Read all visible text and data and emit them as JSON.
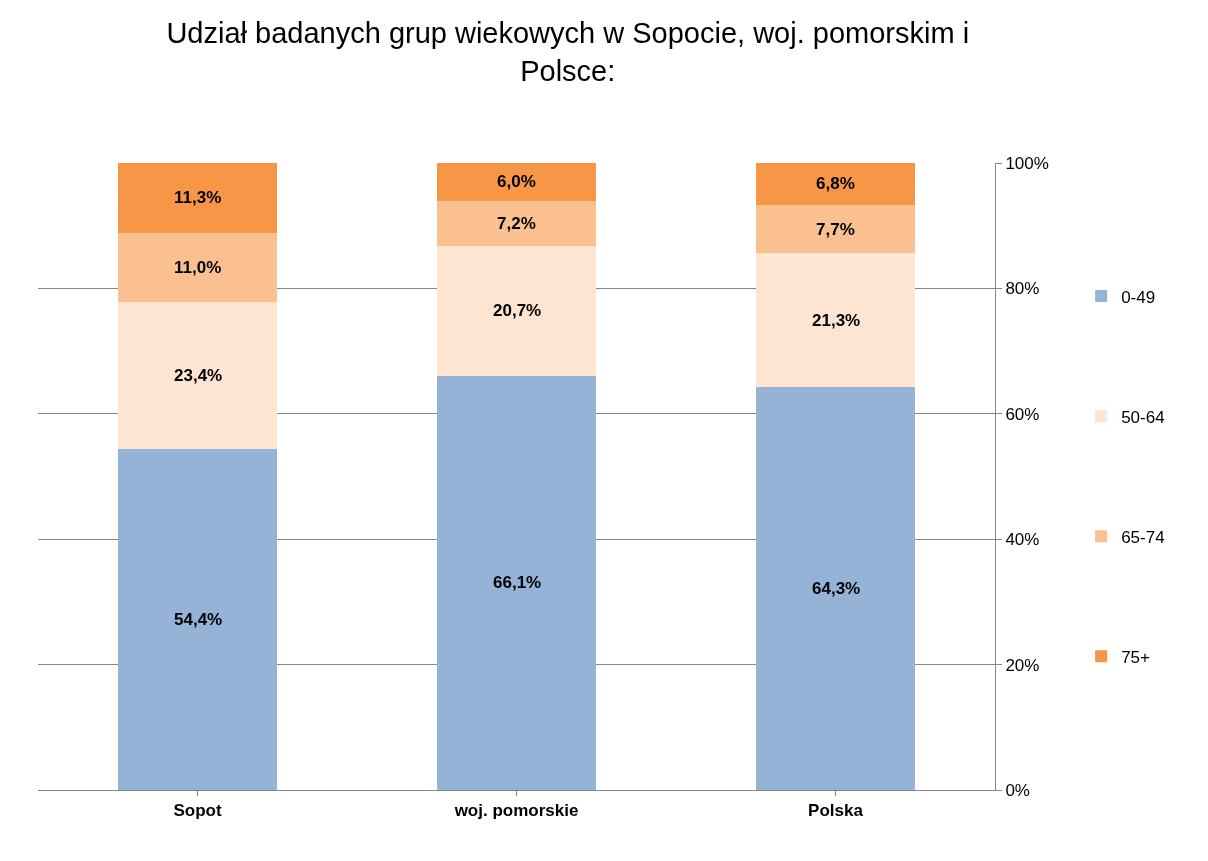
{
  "chart_data": {
    "type": "bar",
    "stacked": true,
    "title": "Udział badanych grup wiekowych w Sopocie, woj. pomorskim i\nPolsce:",
    "categories": [
      "Sopot",
      "woj. pomorskie",
      "Polska"
    ],
    "series": [
      {
        "name": "0-49",
        "color": "#95b3d7",
        "values": [
          54.4,
          66.1,
          64.3
        ],
        "value_labels": [
          "54,4%",
          "66,1%",
          "64,3%"
        ]
      },
      {
        "name": "50-64",
        "color": "#fde5d2",
        "values": [
          23.4,
          20.7,
          21.3
        ],
        "value_labels": [
          "23,4%",
          "20,7%",
          "21,3%"
        ]
      },
      {
        "name": "65-74",
        "color": "#fac090",
        "values": [
          11.0,
          7.2,
          7.7
        ],
        "value_labels": [
          "11,0%",
          "7,2%",
          "7,7%"
        ]
      },
      {
        "name": "75+",
        "color": "#f79646",
        "values": [
          11.3,
          6.0,
          6.8
        ],
        "value_labels": [
          "11,3%",
          "6,0%",
          "6,8%"
        ]
      }
    ],
    "ylim": [
      0,
      100
    ],
    "yticks": [
      {
        "value": 0,
        "label": "0%"
      },
      {
        "value": 20,
        "label": "20%"
      },
      {
        "value": 40,
        "label": "40%"
      },
      {
        "value": 60,
        "label": "60%"
      },
      {
        "value": 80,
        "label": "80%"
      },
      {
        "value": 100,
        "label": "100%"
      }
    ],
    "grid": "y",
    "legend": "right"
  }
}
